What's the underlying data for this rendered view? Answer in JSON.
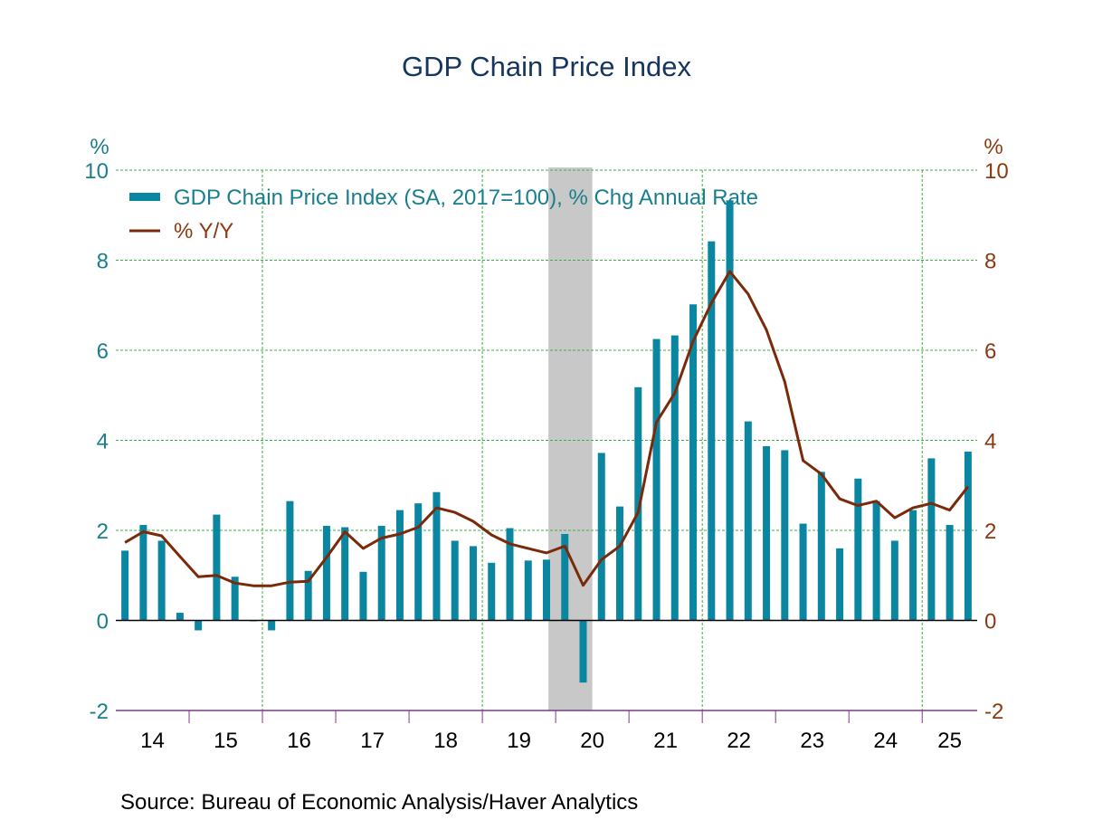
{
  "chart_data": {
    "type": "bar",
    "title": "GDP Chain Price Index",
    "source": "Source:  Bureau of Economic Analysis/Haver Analytics",
    "left_unit": "%",
    "right_unit": "%",
    "ylim": [
      -2,
      10
    ],
    "yticks": [
      -2,
      0,
      2,
      4,
      6,
      8,
      10
    ],
    "x_tick_labels": [
      "14",
      "15",
      "16",
      "17",
      "18",
      "19",
      "20",
      "21",
      "22",
      "23",
      "24",
      "25"
    ],
    "x_start": "2014Q1",
    "x_end": "2025Q3",
    "grid": true,
    "legend_placement": "top-left",
    "recession": {
      "start": "2020Q1",
      "end": "2020Q2"
    },
    "colors": {
      "bars": "#0a86a0",
      "line": "#7a2a0a",
      "left_axis": "#1a7f8c",
      "right_axis": "#8b3a12",
      "title": "#16355f",
      "grid": "#3cb043",
      "recession": "#c8c8c8"
    },
    "series": [
      {
        "name": "GDP Chain Price Index (SA, 2017=100), % Chg Annual Rate",
        "type": "bar",
        "axis": "left",
        "values": [
          1.55,
          2.12,
          1.77,
          0.17,
          -0.22,
          2.35,
          0.97,
          -0.02,
          -0.22,
          2.65,
          1.1,
          2.1,
          2.07,
          1.08,
          2.1,
          2.45,
          2.6,
          2.85,
          1.77,
          1.65,
          1.28,
          2.05,
          1.33,
          1.35,
          1.92,
          -1.38,
          3.72,
          2.53,
          5.18,
          6.25,
          6.33,
          7.02,
          8.42,
          9.33,
          4.42,
          3.87,
          3.78,
          2.15,
          3.3,
          1.6,
          3.15,
          2.65,
          1.77,
          2.45,
          3.6,
          2.12,
          3.75
        ]
      },
      {
        "name": "% Y/Y",
        "type": "line",
        "axis": "right",
        "values": [
          1.73,
          1.97,
          1.88,
          1.42,
          0.97,
          1.0,
          0.83,
          0.77,
          0.77,
          0.85,
          0.87,
          1.4,
          1.97,
          1.6,
          1.83,
          1.92,
          2.07,
          2.5,
          2.4,
          2.2,
          1.9,
          1.7,
          1.6,
          1.5,
          1.65,
          0.78,
          1.35,
          1.65,
          2.4,
          4.4,
          5.05,
          6.2,
          7.05,
          7.75,
          7.25,
          6.45,
          5.3,
          3.55,
          3.25,
          2.7,
          2.55,
          2.65,
          2.28,
          2.5,
          2.6,
          2.45,
          2.97
        ]
      }
    ]
  }
}
